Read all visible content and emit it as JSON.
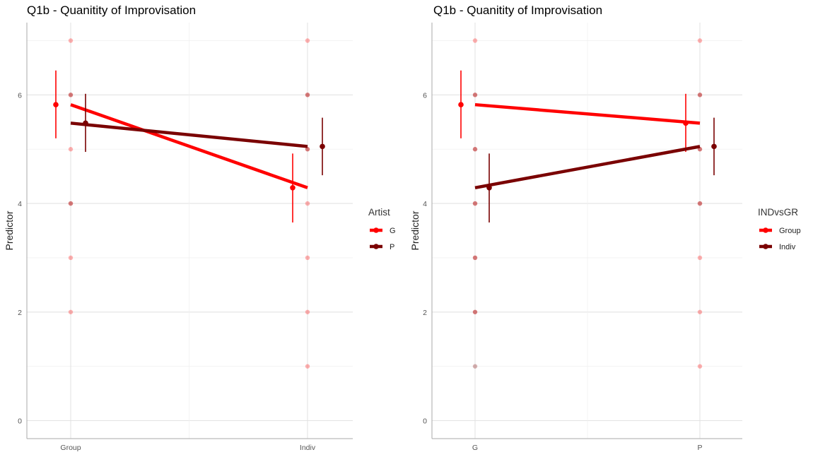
{
  "chart_data": [
    {
      "type": "line",
      "title": "Q1b - Quanitity of Improvisation",
      "ylabel": "Predictor",
      "xlabel": "",
      "categories": [
        "Group",
        "Indiv"
      ],
      "ylim": [
        0,
        7
      ],
      "yticks": [
        "0",
        "2",
        "4",
        "6"
      ],
      "grid": true,
      "legend": {
        "title": "Artist",
        "position": "right"
      },
      "series": [
        {
          "name": "G",
          "color": "#ff0000",
          "means": [
            5.82,
            4.29
          ],
          "ci_low": [
            5.2,
            3.65
          ],
          "ci_high": [
            6.45,
            4.92
          ],
          "points": [
            [
              7,
              6,
              5,
              4,
              3,
              2
            ],
            [
              7,
              6,
              5,
              4,
              3,
              2,
              1
            ]
          ]
        },
        {
          "name": "P",
          "color": "#7a0000",
          "means": [
            5.48,
            5.05
          ],
          "ci_low": [
            4.95,
            4.52
          ],
          "ci_high": [
            6.02,
            5.58
          ],
          "points": [
            [
              6,
              4
            ],
            [
              6,
              5
            ]
          ]
        }
      ]
    },
    {
      "type": "line",
      "title": "Q1b - Quanitity of Improvisation",
      "ylabel": "Predictor",
      "xlabel": "",
      "categories": [
        "G",
        "P"
      ],
      "ylim": [
        0,
        7
      ],
      "yticks": [
        "0",
        "2",
        "4",
        "6"
      ],
      "grid": true,
      "legend": {
        "title": "INDvsGR",
        "position": "right"
      },
      "series": [
        {
          "name": "Group",
          "color": "#ff0000",
          "means": [
            5.82,
            5.48
          ],
          "ci_low": [
            5.2,
            4.95
          ],
          "ci_high": [
            6.45,
            6.02
          ],
          "points": [
            [
              7,
              6,
              5,
              4,
              3,
              2
            ],
            [
              7,
              6,
              5,
              4,
              3,
              2,
              1
            ]
          ]
        },
        {
          "name": "Indiv",
          "color": "#7a0000",
          "means": [
            4.29,
            5.05
          ],
          "ci_low": [
            3.65,
            4.52
          ],
          "ci_high": [
            4.92,
            5.58
          ],
          "points": [
            [
              6,
              5,
              4,
              3,
              2,
              1
            ],
            [
              6,
              5,
              4
            ]
          ]
        }
      ]
    }
  ]
}
